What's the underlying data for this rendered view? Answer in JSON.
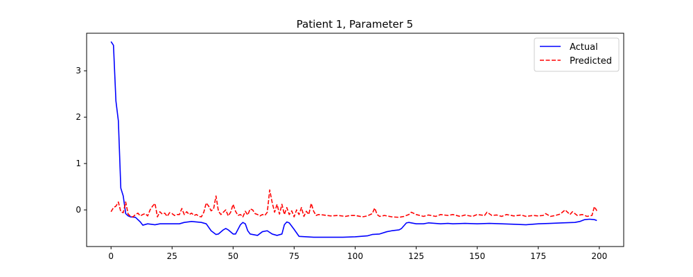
{
  "chart_data": {
    "type": "line",
    "title": "Patient 1, Parameter 5",
    "xlabel": "",
    "ylabel": "",
    "xlim": [
      -10,
      210
    ],
    "ylim": [
      -0.79,
      3.81
    ],
    "xticks": [
      0,
      25,
      50,
      75,
      100,
      125,
      150,
      175,
      200
    ],
    "yticks": [
      0,
      1,
      2,
      3
    ],
    "grid": false,
    "legend_position": "top-right",
    "series": [
      {
        "name": "Actual",
        "color": "#0000ff",
        "style": "solid",
        "points": [
          [
            0,
            3.63
          ],
          [
            1,
            3.55
          ],
          [
            2,
            2.35
          ],
          [
            3,
            1.92
          ],
          [
            4,
            0.47
          ],
          [
            5,
            0.3
          ],
          [
            6,
            -0.08
          ],
          [
            7,
            -0.13
          ],
          [
            8,
            -0.15
          ],
          [
            10,
            -0.16
          ],
          [
            12,
            -0.26
          ],
          [
            13,
            -0.33
          ],
          [
            15,
            -0.3
          ],
          [
            18,
            -0.32
          ],
          [
            20,
            -0.3
          ],
          [
            25,
            -0.3
          ],
          [
            28,
            -0.3
          ],
          [
            30,
            -0.27
          ],
          [
            33,
            -0.25
          ],
          [
            37,
            -0.27
          ],
          [
            39,
            -0.3
          ],
          [
            41,
            -0.45
          ],
          [
            43,
            -0.53
          ],
          [
            44,
            -0.52
          ],
          [
            46,
            -0.43
          ],
          [
            47,
            -0.4
          ],
          [
            48,
            -0.43
          ],
          [
            50,
            -0.52
          ],
          [
            51,
            -0.52
          ],
          [
            53,
            -0.32
          ],
          [
            54,
            -0.27
          ],
          [
            55,
            -0.3
          ],
          [
            56,
            -0.45
          ],
          [
            57,
            -0.52
          ],
          [
            60,
            -0.55
          ],
          [
            62,
            -0.47
          ],
          [
            64,
            -0.45
          ],
          [
            66,
            -0.52
          ],
          [
            68,
            -0.55
          ],
          [
            70,
            -0.52
          ],
          [
            71,
            -0.32
          ],
          [
            72,
            -0.26
          ],
          [
            73,
            -0.28
          ],
          [
            75,
            -0.42
          ],
          [
            77,
            -0.57
          ],
          [
            80,
            -0.58
          ],
          [
            83,
            -0.59
          ],
          [
            90,
            -0.59
          ],
          [
            95,
            -0.59
          ],
          [
            100,
            -0.58
          ],
          [
            105,
            -0.56
          ],
          [
            107,
            -0.53
          ],
          [
            110,
            -0.52
          ],
          [
            113,
            -0.47
          ],
          [
            115,
            -0.45
          ],
          [
            118,
            -0.43
          ],
          [
            119,
            -0.4
          ],
          [
            121,
            -0.28
          ],
          [
            122,
            -0.27
          ],
          [
            125,
            -0.3
          ],
          [
            128,
            -0.3
          ],
          [
            130,
            -0.28
          ],
          [
            135,
            -0.3
          ],
          [
            138,
            -0.29
          ],
          [
            140,
            -0.3
          ],
          [
            145,
            -0.29
          ],
          [
            150,
            -0.3
          ],
          [
            155,
            -0.29
          ],
          [
            160,
            -0.3
          ],
          [
            165,
            -0.31
          ],
          [
            170,
            -0.32
          ],
          [
            175,
            -0.3
          ],
          [
            180,
            -0.29
          ],
          [
            185,
            -0.28
          ],
          [
            190,
            -0.27
          ],
          [
            192,
            -0.25
          ],
          [
            194,
            -0.21
          ],
          [
            196,
            -0.2
          ],
          [
            198,
            -0.21
          ],
          [
            199,
            -0.23
          ]
        ]
      },
      {
        "name": "Predicted",
        "color": "#ff0000",
        "style": "dashed",
        "points": [
          [
            0,
            -0.04
          ],
          [
            1,
            0.05
          ],
          [
            2,
            0.08
          ],
          [
            3,
            0.17
          ],
          [
            4,
            -0.04
          ],
          [
            5,
            -0.06
          ],
          [
            6,
            0.17
          ],
          [
            7,
            -0.09
          ],
          [
            8,
            -0.14
          ],
          [
            9,
            -0.15
          ],
          [
            10,
            -0.1
          ],
          [
            11,
            -0.07
          ],
          [
            12,
            -0.13
          ],
          [
            13,
            -0.1
          ],
          [
            14,
            -0.08
          ],
          [
            15,
            -0.13
          ],
          [
            16,
            0.0
          ],
          [
            17,
            0.08
          ],
          [
            18,
            0.14
          ],
          [
            19,
            -0.15
          ],
          [
            20,
            -0.04
          ],
          [
            21,
            -0.09
          ],
          [
            22,
            -0.07
          ],
          [
            23,
            -0.14
          ],
          [
            24,
            -0.06
          ],
          [
            25,
            -0.08
          ],
          [
            26,
            -0.12
          ],
          [
            27,
            -0.1
          ],
          [
            28,
            -0.1
          ],
          [
            29,
            0.03
          ],
          [
            30,
            -0.1
          ],
          [
            31,
            -0.04
          ],
          [
            32,
            -0.1
          ],
          [
            33,
            -0.07
          ],
          [
            34,
            -0.12
          ],
          [
            35,
            -0.1
          ],
          [
            36,
            -0.14
          ],
          [
            37,
            -0.15
          ],
          [
            38,
            -0.05
          ],
          [
            39,
            0.15
          ],
          [
            40,
            0.08
          ],
          [
            41,
            -0.02
          ],
          [
            42,
            0.02
          ],
          [
            43,
            0.3
          ],
          [
            44,
            -0.03
          ],
          [
            45,
            -0.1
          ],
          [
            46,
            -0.05
          ],
          [
            47,
            0.0
          ],
          [
            48,
            -0.13
          ],
          [
            49,
            -0.05
          ],
          [
            50,
            0.12
          ],
          [
            51,
            -0.03
          ],
          [
            52,
            -0.12
          ],
          [
            53,
            -0.1
          ],
          [
            54,
            -0.15
          ],
          [
            55,
            -0.03
          ],
          [
            56,
            -0.11
          ],
          [
            57,
            0.02
          ],
          [
            58,
            0.0
          ],
          [
            59,
            -0.08
          ],
          [
            60,
            -0.1
          ],
          [
            61,
            -0.13
          ],
          [
            62,
            -0.1
          ],
          [
            63,
            -0.12
          ],
          [
            64,
            -0.05
          ],
          [
            65,
            0.43
          ],
          [
            66,
            0.16
          ],
          [
            67,
            -0.05
          ],
          [
            68,
            0.12
          ],
          [
            69,
            -0.09
          ],
          [
            70,
            0.12
          ],
          [
            71,
            -0.1
          ],
          [
            72,
            0.05
          ],
          [
            73,
            -0.1
          ],
          [
            74,
            -0.02
          ],
          [
            75,
            -0.15
          ],
          [
            76,
            0.0
          ],
          [
            77,
            -0.1
          ],
          [
            78,
            0.05
          ],
          [
            79,
            -0.14
          ],
          [
            80,
            -0.03
          ],
          [
            81,
            -0.1
          ],
          [
            82,
            0.14
          ],
          [
            83,
            -0.03
          ],
          [
            84,
            -0.12
          ],
          [
            85,
            -0.1
          ],
          [
            87,
            -0.11
          ],
          [
            90,
            -0.13
          ],
          [
            93,
            -0.12
          ],
          [
            96,
            -0.14
          ],
          [
            98,
            -0.12
          ],
          [
            100,
            -0.12
          ],
          [
            103,
            -0.15
          ],
          [
            105,
            -0.13
          ],
          [
            107,
            -0.08
          ],
          [
            108,
            0.04
          ],
          [
            109,
            -0.1
          ],
          [
            110,
            -0.14
          ],
          [
            112,
            -0.12
          ],
          [
            115,
            -0.15
          ],
          [
            118,
            -0.16
          ],
          [
            120,
            -0.14
          ],
          [
            122,
            -0.1
          ],
          [
            123,
            -0.05
          ],
          [
            125,
            -0.1
          ],
          [
            128,
            -0.14
          ],
          [
            130,
            -0.11
          ],
          [
            133,
            -0.14
          ],
          [
            135,
            -0.1
          ],
          [
            138,
            -0.12
          ],
          [
            140,
            -0.1
          ],
          [
            143,
            -0.14
          ],
          [
            145,
            -0.11
          ],
          [
            148,
            -0.14
          ],
          [
            150,
            -0.1
          ],
          [
            153,
            -0.12
          ],
          [
            154,
            -0.05
          ],
          [
            156,
            -0.12
          ],
          [
            158,
            -0.11
          ],
          [
            160,
            -0.14
          ],
          [
            162,
            -0.1
          ],
          [
            165,
            -0.13
          ],
          [
            168,
            -0.11
          ],
          [
            170,
            -0.14
          ],
          [
            173,
            -0.12
          ],
          [
            175,
            -0.13
          ],
          [
            177,
            -0.12
          ],
          [
            178,
            -0.08
          ],
          [
            180,
            -0.14
          ],
          [
            182,
            -0.12
          ],
          [
            184,
            -0.09
          ],
          [
            186,
            0.0
          ],
          [
            188,
            -0.1
          ],
          [
            189,
            -0.04
          ],
          [
            191,
            -0.12
          ],
          [
            193,
            -0.1
          ],
          [
            195,
            -0.14
          ],
          [
            197,
            -0.12
          ],
          [
            198,
            0.07
          ],
          [
            199,
            -0.02
          ]
        ]
      }
    ]
  }
}
